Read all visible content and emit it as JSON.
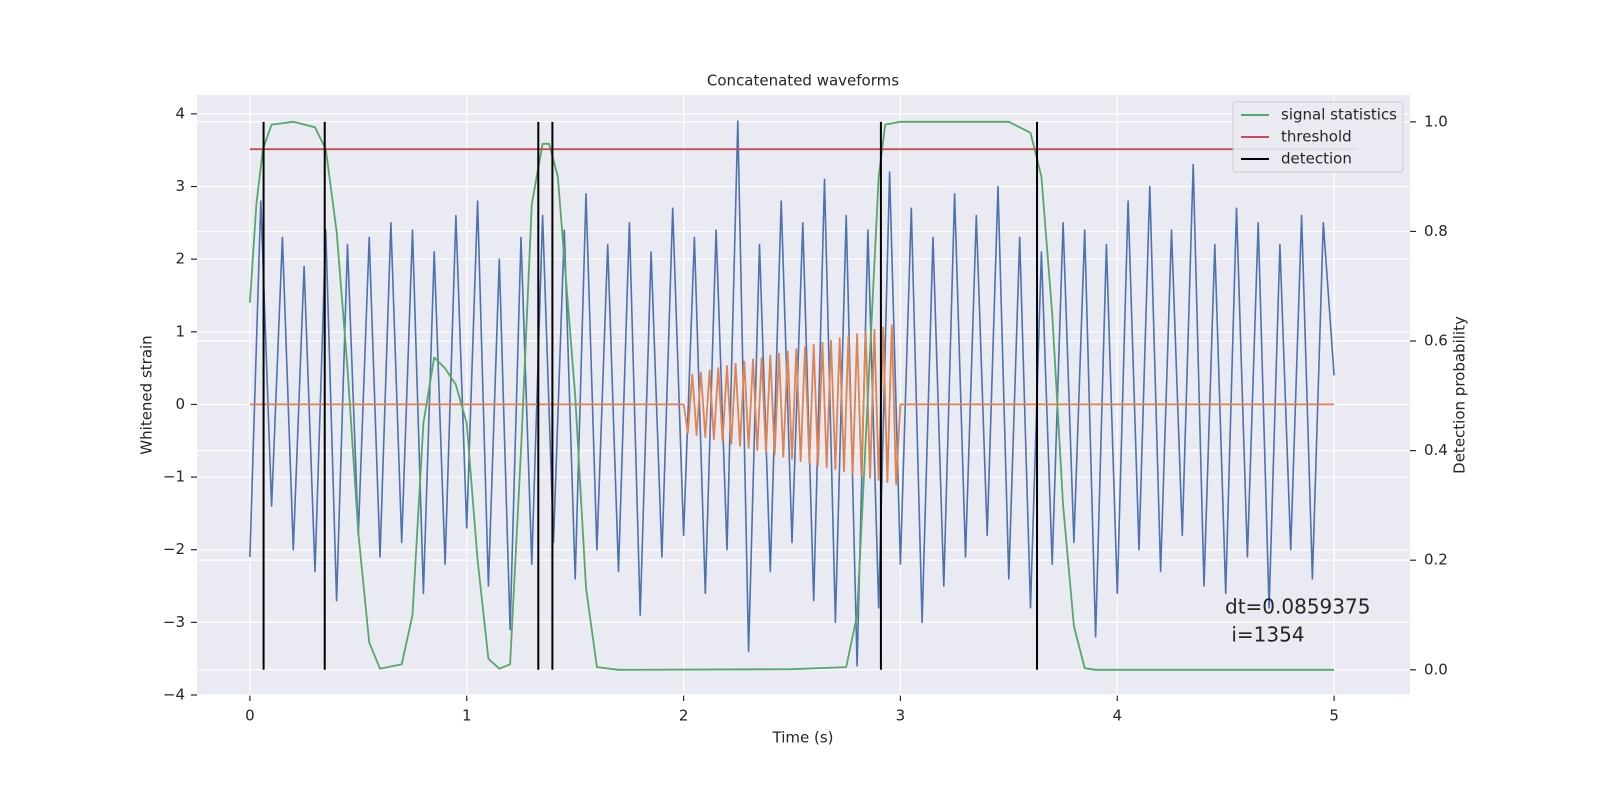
{
  "chart_data": {
    "type": "line",
    "title": "Concatenated waveforms",
    "xlabel": "Time (s)",
    "ylabel": "Whitened strain",
    "y2label": "Detection probability",
    "xlim": [
      -0.244,
      5.35
    ],
    "xticks": [
      0,
      1,
      2,
      3,
      4,
      5
    ],
    "ylim": [
      -4.0,
      4.26
    ],
    "yticks": [
      {
        "value": -4,
        "label": "−4"
      },
      {
        "value": -3,
        "label": "−3"
      },
      {
        "value": -2,
        "label": "−2"
      },
      {
        "value": -1,
        "label": "−1"
      },
      0,
      1,
      2,
      3,
      4
    ],
    "y2lim": [
      -0.046,
      1.049
    ],
    "y2ticks": [
      {
        "value": 0,
        "label": "0.0"
      },
      0.2,
      0.4,
      0.6,
      0.8,
      {
        "value": 1,
        "label": "1.0"
      }
    ],
    "grid": true,
    "legend": "upper right",
    "series": [
      {
        "color": "#4c72b0",
        "axis": "y",
        "x": [
          0,
          0.05,
          0.1,
          0.15,
          0.2,
          0.25,
          0.3,
          0.35,
          0.4,
          0.45,
          0.5,
          0.55,
          0.6,
          0.65,
          0.7,
          0.75,
          0.8,
          0.85,
          0.9,
          0.95,
          1,
          1.05,
          1.1,
          1.15,
          1.2,
          1.25,
          1.3,
          1.35,
          1.4,
          1.45,
          1.5,
          1.55,
          1.6,
          1.65,
          1.7,
          1.75,
          1.8,
          1.85,
          1.9,
          1.95,
          2,
          2.05,
          2.1,
          2.15,
          2.2,
          2.25,
          2.3,
          2.35,
          2.4,
          2.45,
          2.5,
          2.55,
          2.6,
          2.65,
          2.7,
          2.75,
          2.8,
          2.85,
          2.9,
          2.95,
          3,
          3.05,
          3.1,
          3.15,
          3.2,
          3.25,
          3.3,
          3.35,
          3.4,
          3.45,
          3.5,
          3.55,
          3.6,
          3.65,
          3.7,
          3.75,
          3.8,
          3.85,
          3.9,
          3.95,
          4,
          4.05,
          4.1,
          4.15,
          4.2,
          4.25,
          4.3,
          4.35,
          4.4,
          4.45,
          4.5,
          4.55,
          4.6,
          4.65,
          4.7,
          4.75,
          4.8,
          4.85,
          4.9,
          4.95,
          5
        ],
        "values": [
          -2.1,
          2.8,
          -1.4,
          2.3,
          -2.0,
          1.9,
          -2.3,
          2.4,
          -2.7,
          2.2,
          -1.8,
          2.3,
          -2.1,
          2.5,
          -1.9,
          2.4,
          -2.6,
          2.1,
          -2.2,
          2.6,
          -1.7,
          2.8,
          -2.5,
          2.0,
          -3.1,
          2.3,
          -2.2,
          2.6,
          -1.9,
          2.4,
          -2.4,
          2.9,
          -2.0,
          2.2,
          -2.3,
          2.5,
          -2.9,
          2.1,
          -2.1,
          2.7,
          -1.8,
          2.3,
          -2.6,
          2.4,
          -2.0,
          3.9,
          -3.4,
          2.2,
          -2.3,
          2.8,
          -1.9,
          2.5,
          -2.7,
          3.1,
          -3.0,
          2.6,
          -3.6,
          2.4,
          -2.8,
          3.2,
          -2.2,
          2.7,
          -3.0,
          2.3,
          -2.5,
          2.9,
          -2.1,
          2.6,
          -1.8,
          3.0,
          -2.4,
          2.3,
          -2.8,
          2.1,
          -2.2,
          2.5,
          -1.9,
          2.4,
          -3.2,
          2.2,
          -2.6,
          2.8,
          -2.0,
          3.0,
          -2.3,
          2.4,
          -1.8,
          3.3,
          -2.5,
          2.2,
          -2.6,
          2.7,
          -2.1,
          2.5,
          -2.8,
          2.2,
          -2.0,
          2.6,
          -2.4,
          2.5,
          0.4
        ]
      },
      {
        "color": "#dd8452",
        "axis": "y",
        "x": [
          0,
          2,
          2.02,
          2.04,
          2.06,
          2.08,
          2.1,
          2.12,
          2.14,
          2.16,
          2.18,
          2.2,
          2.22,
          2.24,
          2.26,
          2.28,
          2.3,
          2.32,
          2.34,
          2.36,
          2.38,
          2.4,
          2.42,
          2.44,
          2.46,
          2.48,
          2.5,
          2.52,
          2.54,
          2.56,
          2.58,
          2.6,
          2.62,
          2.64,
          2.66,
          2.68,
          2.7,
          2.72,
          2.74,
          2.76,
          2.78,
          2.8,
          2.82,
          2.84,
          2.86,
          2.88,
          2.9,
          2.92,
          2.94,
          2.96,
          2.98,
          3,
          5
        ],
        "values": [
          0,
          0,
          -0.39,
          0.41,
          -0.42,
          0.44,
          -0.45,
          0.47,
          -0.48,
          0.5,
          -0.51,
          0.53,
          -0.54,
          0.56,
          -0.57,
          0.59,
          -0.6,
          0.62,
          -0.63,
          0.64,
          -0.66,
          0.67,
          -0.69,
          0.7,
          -0.72,
          0.73,
          -0.75,
          0.76,
          -0.78,
          0.79,
          -0.81,
          0.82,
          -0.84,
          0.85,
          -0.87,
          0.88,
          -0.89,
          0.91,
          -0.92,
          0.94,
          -0.95,
          0.97,
          -0.98,
          1.0,
          -1.01,
          1.03,
          -1.04,
          1.06,
          -1.07,
          1.09,
          -1.1,
          0,
          0
        ]
      },
      {
        "name": "signal statistics",
        "color": "#55a868",
        "axis": "y2",
        "x": [
          0,
          0.03,
          0.06,
          0.1,
          0.2,
          0.3,
          0.35,
          0.4,
          0.45,
          0.5,
          0.55,
          0.6,
          0.7,
          0.75,
          0.8,
          0.85,
          0.9,
          0.95,
          1.0,
          1.05,
          1.1,
          1.15,
          1.2,
          1.25,
          1.3,
          1.35,
          1.38,
          1.42,
          1.5,
          1.55,
          1.6,
          1.7,
          2.5,
          2.75,
          2.8,
          2.85,
          2.9,
          2.93,
          3.0,
          3.5,
          3.6,
          3.65,
          3.7,
          3.75,
          3.8,
          3.85,
          3.9,
          5.0
        ],
        "values": [
          0.67,
          0.85,
          0.95,
          0.995,
          1.0,
          0.99,
          0.95,
          0.8,
          0.55,
          0.25,
          0.05,
          0.002,
          0.01,
          0.1,
          0.45,
          0.57,
          0.55,
          0.52,
          0.45,
          0.2,
          0.02,
          0.002,
          0.01,
          0.4,
          0.85,
          0.96,
          0.96,
          0.9,
          0.5,
          0.15,
          0.005,
          0,
          0.001,
          0.005,
          0.1,
          0.5,
          0.9,
          0.995,
          1.0,
          1.0,
          0.98,
          0.9,
          0.65,
          0.3,
          0.08,
          0.003,
          0,
          0
        ]
      },
      {
        "name": "threshold",
        "color": "#c44e52",
        "axis": "y2",
        "x": [
          0,
          5.1
        ],
        "values": [
          0.95,
          0.95
        ]
      },
      {
        "name": "detection",
        "color": "#000000",
        "axis": "y2",
        "style": "vlines",
        "x": [
          0.063,
          0.345,
          1.33,
          1.395,
          2.91,
          3.63
        ],
        "values": [
          1,
          1,
          1,
          1,
          1,
          1
        ]
      }
    ],
    "annotation": [
      "dt=0.0859375",
      " i=1354"
    ]
  }
}
